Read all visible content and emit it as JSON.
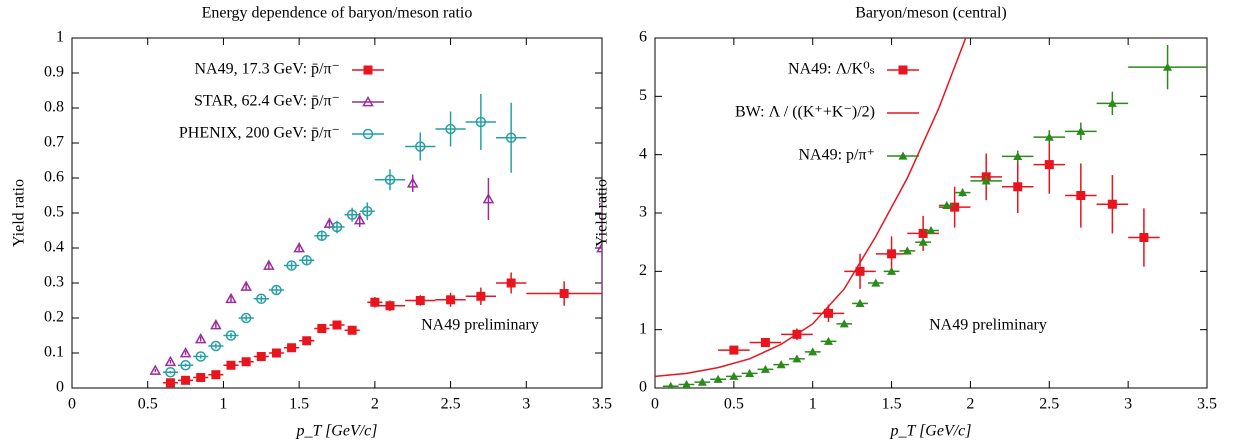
{
  "chart_data": [
    {
      "type": "scatter",
      "title": "Energy dependence of baryon/meson ratio",
      "x_label": "p_T [GeV/c]",
      "y_label": "Yield ratio",
      "xlim": [
        0,
        3.5
      ],
      "ylim": [
        0,
        1
      ],
      "xticks": [
        0,
        0.5,
        1,
        1.5,
        2,
        2.5,
        3,
        3.5
      ],
      "yticks": [
        0,
        0.1,
        0.2,
        0.3,
        0.4,
        0.5,
        0.6,
        0.7,
        0.8,
        0.9,
        1
      ],
      "annotation": "NA49 preliminary",
      "series": [
        {
          "name": "NA49, 17.3 GeV: p̄/π⁻",
          "color": "#e8141e",
          "marker": "square",
          "x": [
            0.65,
            0.75,
            0.85,
            0.95,
            1.05,
            1.15,
            1.25,
            1.35,
            1.45,
            1.55,
            1.65,
            1.75,
            1.85,
            2.0,
            2.1,
            2.3,
            2.5,
            2.7,
            2.9,
            3.25
          ],
          "values": [
            0.015,
            0.022,
            0.03,
            0.038,
            0.065,
            0.075,
            0.09,
            0.1,
            0.115,
            0.135,
            0.17,
            0.18,
            0.165,
            0.245,
            0.235,
            0.25,
            0.252,
            0.262,
            0.3,
            0.27
          ],
          "yerr": [
            0.004,
            0.004,
            0.005,
            0.005,
            0.006,
            0.006,
            0.007,
            0.007,
            0.008,
            0.008,
            0.01,
            0.01,
            0.01,
            0.015,
            0.015,
            0.015,
            0.02,
            0.025,
            0.03,
            0.035
          ],
          "xerr": [
            0.05,
            0.05,
            0.05,
            0.05,
            0.05,
            0.05,
            0.05,
            0.05,
            0.05,
            0.05,
            0.05,
            0.05,
            0.05,
            0.05,
            0.1,
            0.1,
            0.1,
            0.1,
            0.1,
            0.25
          ]
        },
        {
          "name": "STAR, 62.4 GeV: p̄/π⁻",
          "color": "#9b2d9b",
          "marker": "triangle",
          "x": [
            0.55,
            0.65,
            0.75,
            0.85,
            0.95,
            1.05,
            1.15,
            1.3,
            1.5,
            1.7,
            1.9,
            2.25,
            2.75,
            3.5
          ],
          "values": [
            0.05,
            0.075,
            0.1,
            0.14,
            0.18,
            0.255,
            0.29,
            0.35,
            0.4,
            0.47,
            0.48,
            0.585,
            0.54,
            0.4
          ],
          "yerr": [
            0.004,
            0.005,
            0.006,
            0.007,
            0.008,
            0.009,
            0.01,
            0.012,
            0.012,
            0.015,
            0.02,
            0.025,
            0.06,
            0.13
          ]
        },
        {
          "name": "PHENIX, 200 GeV: p̄/π⁻",
          "color": "#27a0a4",
          "marker": "circle",
          "x": [
            0.65,
            0.75,
            0.85,
            0.95,
            1.05,
            1.15,
            1.25,
            1.35,
            1.45,
            1.55,
            1.65,
            1.75,
            1.85,
            1.95,
            2.1,
            2.3,
            2.5,
            2.7,
            2.9
          ],
          "values": [
            0.045,
            0.065,
            0.09,
            0.12,
            0.15,
            0.2,
            0.255,
            0.28,
            0.35,
            0.365,
            0.435,
            0.46,
            0.495,
            0.505,
            0.595,
            0.69,
            0.74,
            0.76,
            0.715
          ],
          "yerr": [
            0.004,
            0.005,
            0.006,
            0.007,
            0.008,
            0.008,
            0.009,
            0.01,
            0.01,
            0.012,
            0.015,
            0.018,
            0.02,
            0.025,
            0.03,
            0.04,
            0.05,
            0.08,
            0.1
          ],
          "xerr": [
            0.05,
            0.05,
            0.05,
            0.05,
            0.05,
            0.05,
            0.05,
            0.05,
            0.05,
            0.05,
            0.05,
            0.05,
            0.05,
            0.05,
            0.1,
            0.1,
            0.1,
            0.1,
            0.1
          ]
        }
      ]
    },
    {
      "type": "scatter",
      "title": "Baryon/meson (central)",
      "x_label": "p_T [GeV/c]",
      "y_label": "Yield ratio",
      "xlim": [
        0,
        3.5
      ],
      "ylim": [
        0,
        6
      ],
      "xticks": [
        0,
        0.5,
        1,
        1.5,
        2,
        2.5,
        3,
        3.5
      ],
      "yticks": [
        0,
        1,
        2,
        3,
        4,
        5,
        6
      ],
      "annotation": "NA49 preliminary",
      "series": [
        {
          "name": "NA49: Λ/K⁰ₛ",
          "color": "#e8141e",
          "marker": "square",
          "x": [
            0.5,
            0.7,
            0.9,
            1.1,
            1.3,
            1.5,
            1.7,
            1.9,
            2.1,
            2.3,
            2.5,
            2.7,
            2.9,
            3.1
          ],
          "values": [
            0.65,
            0.78,
            0.92,
            1.28,
            2.0,
            2.3,
            2.65,
            3.1,
            3.62,
            3.45,
            3.83,
            3.3,
            3.15,
            2.58
          ],
          "yerr": [
            0.05,
            0.06,
            0.1,
            0.15,
            0.3,
            0.3,
            0.3,
            0.35,
            0.4,
            0.45,
            0.5,
            0.55,
            0.5,
            0.5
          ],
          "xerr": [
            0.1,
            0.1,
            0.1,
            0.1,
            0.1,
            0.1,
            0.1,
            0.1,
            0.1,
            0.1,
            0.1,
            0.1,
            0.1,
            0.1
          ]
        },
        {
          "name": "BW: Λ / ((K⁺+K⁻)/2)",
          "color": "#e8141e",
          "marker": "line",
          "x": [
            0,
            0.2,
            0.4,
            0.6,
            0.8,
            1.0,
            1.2,
            1.4,
            1.6,
            1.8,
            1.97
          ],
          "values": [
            0.2,
            0.25,
            0.35,
            0.5,
            0.75,
            1.1,
            1.7,
            2.6,
            3.6,
            4.8,
            6.0
          ]
        },
        {
          "name": "NA49: p/π⁺",
          "color": "#2a8a1a",
          "marker": "triangle-filled",
          "x": [
            0.1,
            0.2,
            0.3,
            0.4,
            0.5,
            0.6,
            0.7,
            0.8,
            0.9,
            1.0,
            1.1,
            1.2,
            1.3,
            1.4,
            1.5,
            1.6,
            1.7,
            1.75,
            1.85,
            1.95,
            2.1,
            2.3,
            2.5,
            2.7,
            2.9,
            3.25
          ],
          "values": [
            0.03,
            0.06,
            0.1,
            0.15,
            0.2,
            0.25,
            0.32,
            0.4,
            0.5,
            0.62,
            0.8,
            1.1,
            1.45,
            1.8,
            2.0,
            2.35,
            2.5,
            2.7,
            3.13,
            3.35,
            3.55,
            3.97,
            4.3,
            4.4,
            4.88,
            5.5
          ],
          "yerr": [
            0.01,
            0.01,
            0.01,
            0.01,
            0.01,
            0.01,
            0.02,
            0.02,
            0.02,
            0.02,
            0.03,
            0.03,
            0.03,
            0.04,
            0.04,
            0.05,
            0.05,
            0.05,
            0.06,
            0.07,
            0.08,
            0.1,
            0.12,
            0.15,
            0.2,
            0.38
          ],
          "xerr": [
            0.05,
            0.05,
            0.05,
            0.05,
            0.05,
            0.05,
            0.05,
            0.05,
            0.05,
            0.05,
            0.05,
            0.05,
            0.05,
            0.05,
            0.05,
            0.05,
            0.05,
            0.05,
            0.05,
            0.05,
            0.1,
            0.1,
            0.1,
            0.1,
            0.1,
            0.25
          ]
        }
      ]
    }
  ]
}
